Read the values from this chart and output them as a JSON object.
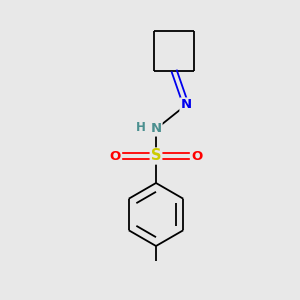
{
  "background_color": "#e8e8e8",
  "atom_colors": {
    "C": "#000000",
    "N": "#0000ee",
    "NH": "#4a8f8f",
    "S": "#cccc00",
    "O": "#ff0000",
    "bond": "#000000"
  },
  "figsize": [
    3.0,
    3.0
  ],
  "dpi": 100,
  "lw": 1.3,
  "fs": 9.5
}
